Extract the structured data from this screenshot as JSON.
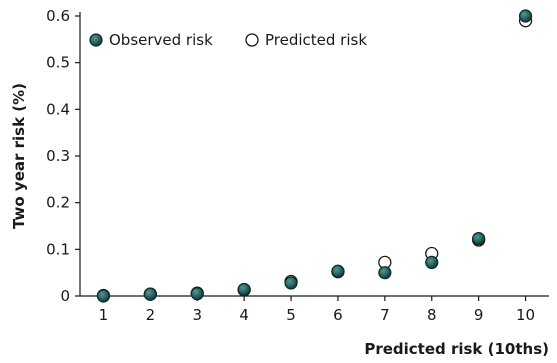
{
  "chart_data": {
    "type": "scatter",
    "title": "",
    "xlabel": "Predicted risk (10ths)",
    "ylabel": "Two year risk (%)",
    "xlim": [
      0.5,
      10.5
    ],
    "ylim": [
      0,
      0.6
    ],
    "x_ticks": [
      "1",
      "2",
      "3",
      "4",
      "5",
      "6",
      "7",
      "8",
      "9",
      "10"
    ],
    "y_ticks": [
      "0",
      "0.1",
      "0.2",
      "0.3",
      "0.4",
      "0.5",
      "0.6"
    ],
    "x": [
      1,
      2,
      3,
      4,
      5,
      6,
      7,
      8,
      9,
      10
    ],
    "series": [
      {
        "name": "Predicted risk",
        "marker": "open-circle",
        "color": "#ffffff",
        "values": [
          0.001,
          0.004,
          0.006,
          0.013,
          0.031,
          0.052,
          0.072,
          0.091,
          0.12,
          0.59
        ]
      },
      {
        "name": "Observed risk",
        "marker": "filled-circle",
        "color": "#1f5f5b",
        "values": [
          0.0,
          0.004,
          0.005,
          0.014,
          0.028,
          0.053,
          0.05,
          0.072,
          0.123,
          0.6
        ]
      }
    ],
    "legend": {
      "placement": "top-left",
      "items": [
        {
          "label": "Observed risk",
          "marker": "filled-circle"
        },
        {
          "label": "Predicted risk",
          "marker": "open-circle"
        }
      ]
    },
    "grid": false
  }
}
